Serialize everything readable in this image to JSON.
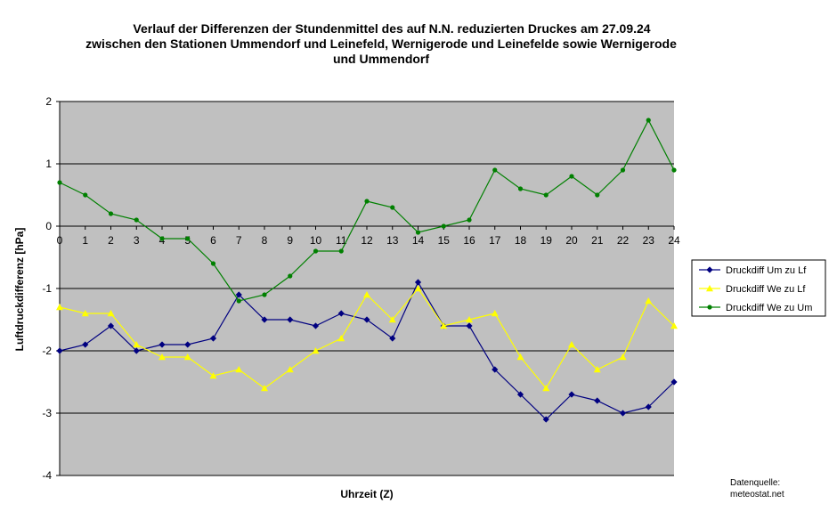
{
  "chart_data": {
    "type": "line",
    "title_lines": [
      "Verlauf der Differenzen der Stundenmittel des auf N.N. reduzierten Druckes am 27.09.24",
      "zwischen den Stationen Ummendorf und Leinefeld, Wernigerode und Leinefelde sowie Wernigerode",
      "und Ummendorf"
    ],
    "xlabel": "Uhrzeit (Z)",
    "ylabel": "Luftdruckdifferenz [hPa]",
    "x": [
      0,
      1,
      2,
      3,
      4,
      5,
      6,
      7,
      8,
      9,
      10,
      11,
      12,
      13,
      14,
      15,
      16,
      17,
      18,
      19,
      20,
      21,
      22,
      23,
      24
    ],
    "x_tick_labels": [
      "0",
      "1",
      "2",
      "3",
      "4",
      "5",
      "6",
      "7",
      "8",
      "9",
      "10",
      "11",
      "12",
      "13",
      "14",
      "15",
      "16",
      "17",
      "18",
      "19",
      "20",
      "21",
      "22",
      "23",
      "24"
    ],
    "xlim": [
      0,
      24
    ],
    "ylim": [
      -4,
      2
    ],
    "y_tick_labels": [
      "2",
      "1",
      "0",
      "-1",
      "-2",
      "-3",
      "-4"
    ],
    "grid": true,
    "legend_position": "right",
    "colors": {
      "plot_background": "#c0c0c0",
      "grid": "#000000"
    },
    "series": [
      {
        "name": "Druckdiff Um zu Lf",
        "color": "#000080",
        "marker": "diamond",
        "values": [
          -2.0,
          -1.9,
          -1.6,
          -2.0,
          -1.9,
          -1.9,
          -1.8,
          -1.1,
          -1.5,
          -1.5,
          -1.6,
          -1.4,
          -1.5,
          -1.8,
          -0.9,
          -1.6,
          -1.6,
          -2.3,
          -2.7,
          -3.1,
          -2.7,
          -2.8,
          -3.0,
          -2.9,
          -2.5
        ]
      },
      {
        "name": "Druckdiff We zu Lf",
        "color": "#ffff00",
        "marker": "triangle",
        "values": [
          -1.3,
          -1.4,
          -1.4,
          -1.9,
          -2.1,
          -2.1,
          -2.4,
          -2.3,
          -2.6,
          -2.3,
          -2.0,
          -1.8,
          -1.1,
          -1.5,
          -1.0,
          -1.6,
          -1.5,
          -1.4,
          -2.1,
          -2.6,
          -1.9,
          -2.3,
          -2.1,
          -1.2,
          -1.6
        ]
      },
      {
        "name": "Druckdiff We zu Um",
        "color": "#008000",
        "marker": "circle",
        "values": [
          0.7,
          0.5,
          0.2,
          0.1,
          -0.2,
          -0.2,
          -0.6,
          -1.2,
          -1.1,
          -0.8,
          -0.4,
          -0.4,
          0.4,
          0.3,
          -0.1,
          0.0,
          0.1,
          0.9,
          0.6,
          0.5,
          0.8,
          0.5,
          0.9,
          1.7,
          0.9
        ]
      }
    ],
    "source_lines": [
      "Datenquelle:",
      "meteostat.net"
    ]
  }
}
